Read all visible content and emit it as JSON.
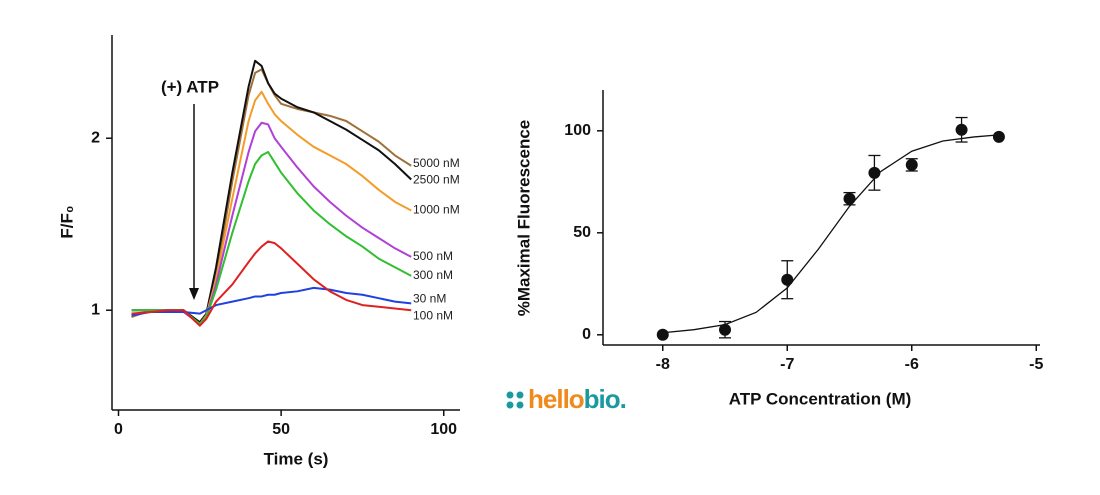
{
  "chart_data": [
    {
      "type": "line",
      "x_label": "Time (s)",
      "y_label": "F/F₀",
      "annotation": "(+) ATP",
      "x": [
        4,
        10,
        15,
        20,
        25,
        27,
        30,
        35,
        40,
        42,
        44,
        46,
        48,
        50,
        55,
        60,
        65,
        70,
        75,
        80,
        85,
        90
      ],
      "xlim": [
        -2,
        105
      ],
      "xticks": [
        0,
        50,
        100
      ],
      "ylim": [
        0.42,
        2.6
      ],
      "yticks": [
        1,
        2
      ],
      "series": [
        {
          "name": "5000 nM",
          "color": "#a0703a",
          "values": [
            0.96,
            1.0,
            1.0,
            1.0,
            0.93,
            0.97,
            1.2,
            1.75,
            2.25,
            2.38,
            2.4,
            2.32,
            2.25,
            2.2,
            2.17,
            2.15,
            2.13,
            2.1,
            2.04,
            1.98,
            1.9,
            1.84
          ]
        },
        {
          "name": "2500 nM",
          "color": "#111111",
          "values": [
            1.0,
            1.0,
            1.0,
            1.0,
            0.93,
            0.98,
            1.25,
            1.8,
            2.3,
            2.45,
            2.42,
            2.32,
            2.26,
            2.23,
            2.18,
            2.15,
            2.1,
            2.05,
            1.99,
            1.93,
            1.85,
            1.76
          ]
        },
        {
          "name": "1000 nM",
          "color": "#f39c2a",
          "values": [
            1.0,
            1.0,
            1.0,
            0.99,
            0.92,
            0.97,
            1.18,
            1.65,
            2.1,
            2.22,
            2.27,
            2.2,
            2.14,
            2.1,
            2.02,
            1.95,
            1.9,
            1.85,
            1.78,
            1.7,
            1.63,
            1.58
          ]
        },
        {
          "name": "500 nM",
          "color": "#b040d8",
          "values": [
            1.0,
            1.0,
            1.0,
            0.99,
            0.92,
            0.96,
            1.15,
            1.55,
            1.92,
            2.04,
            2.09,
            2.08,
            2.0,
            1.95,
            1.83,
            1.72,
            1.63,
            1.55,
            1.48,
            1.42,
            1.36,
            1.31
          ]
        },
        {
          "name": "300 nM",
          "color": "#2fbf2f",
          "values": [
            1.0,
            1.0,
            1.0,
            1.0,
            0.92,
            0.96,
            1.12,
            1.45,
            1.75,
            1.85,
            1.9,
            1.92,
            1.86,
            1.8,
            1.68,
            1.58,
            1.5,
            1.43,
            1.37,
            1.3,
            1.25,
            1.2
          ]
        },
        {
          "name": "30 nM",
          "color": "#2040e0",
          "values": [
            0.97,
            0.99,
            0.99,
            0.99,
            0.98,
            1.0,
            1.03,
            1.05,
            1.07,
            1.08,
            1.08,
            1.09,
            1.09,
            1.1,
            1.11,
            1.13,
            1.12,
            1.1,
            1.09,
            1.07,
            1.05,
            1.04
          ]
        },
        {
          "name": "100 nM",
          "color": "#e02020",
          "values": [
            0.98,
            0.99,
            1.0,
            1.0,
            0.91,
            0.95,
            1.05,
            1.15,
            1.28,
            1.33,
            1.37,
            1.4,
            1.39,
            1.36,
            1.27,
            1.18,
            1.11,
            1.06,
            1.03,
            1.02,
            1.01,
            1.0
          ]
        }
      ]
    },
    {
      "type": "scatter",
      "x_label": "ATP Concentration (M)",
      "y_label": "%Maximal Fluorescence",
      "color": "#111111",
      "x": [
        -8,
        -7.5,
        -7,
        -6.5,
        -6.3,
        -6,
        -5.6,
        -5.3
      ],
      "values": [
        0,
        2.5,
        27,
        66.7,
        79.4,
        83.3,
        100.5,
        97
      ],
      "errors": [
        null,
        4,
        9.3,
        3,
        8.5,
        3,
        6,
        null
      ],
      "fit": {
        "x": [
          -8,
          -7.75,
          -7.5,
          -7.25,
          -7,
          -6.75,
          -6.5,
          -6.25,
          -6,
          -5.75,
          -5.5,
          -5.3
        ],
        "y": [
          1,
          2.5,
          5,
          11,
          23,
          42,
          63,
          80,
          90,
          95,
          97,
          98
        ]
      },
      "xlim": [
        -8.48,
        -4.97
      ],
      "xticks": [
        -8,
        -7,
        -6,
        -5
      ],
      "ylim": [
        -5,
        120
      ],
      "yticks": [
        0,
        50,
        100
      ]
    }
  ],
  "logo": [
    "hello",
    "bio."
  ]
}
